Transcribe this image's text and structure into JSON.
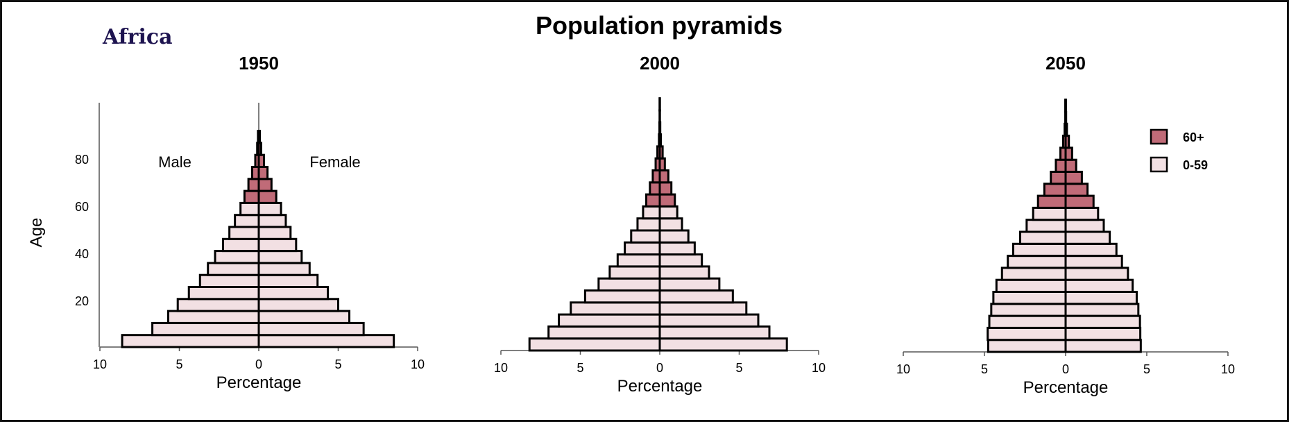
{
  "region_label": "Africa",
  "chart_data": {
    "type": "bar",
    "subtype": "population-pyramid",
    "title": "Population pyramids",
    "xlabel": "Percentage",
    "ylabel": "Age",
    "xlim": [
      -10,
      10
    ],
    "x_ticks": [
      "10",
      "5",
      "0",
      "5",
      "10"
    ],
    "y_ticks": [
      "20",
      "40",
      "60",
      "80"
    ],
    "side_labels": {
      "left": "Male",
      "right": "Female"
    },
    "age_groups": [
      "0-4",
      "5-9",
      "10-14",
      "15-19",
      "20-24",
      "25-29",
      "30-34",
      "35-39",
      "40-44",
      "45-49",
      "50-54",
      "55-59",
      "60-64",
      "65-69",
      "70-74",
      "75-79",
      "80-84",
      "85-89",
      "90-94",
      "95-99",
      "100+"
    ],
    "legend": {
      "position": "top-right",
      "entries": [
        {
          "label": "60+",
          "color": "#c06b78"
        },
        {
          "label": "0-59",
          "color": "#f2e0e3"
        }
      ]
    },
    "grid": false,
    "panels": [
      {
        "title": "1950",
        "male": [
          8.6,
          6.7,
          5.7,
          5.1,
          4.4,
          3.7,
          3.2,
          2.75,
          2.25,
          1.85,
          1.5,
          1.15,
          0.9,
          0.65,
          0.42,
          0.22,
          0.1,
          0.05,
          0,
          0,
          0
        ],
        "female": [
          8.5,
          6.6,
          5.7,
          5.0,
          4.35,
          3.7,
          3.2,
          2.7,
          2.35,
          2.0,
          1.7,
          1.4,
          1.1,
          0.8,
          0.55,
          0.33,
          0.15,
          0.07,
          0,
          0,
          0
        ]
      },
      {
        "title": "2000",
        "male": [
          8.2,
          7.0,
          6.35,
          5.6,
          4.7,
          3.85,
          3.15,
          2.65,
          2.2,
          1.8,
          1.4,
          1.05,
          0.85,
          0.62,
          0.44,
          0.26,
          0.15,
          0.05,
          0.02,
          0.01,
          0.01
        ],
        "female": [
          8.0,
          6.9,
          6.2,
          5.45,
          4.6,
          3.75,
          3.1,
          2.65,
          2.2,
          1.8,
          1.4,
          1.1,
          0.95,
          0.73,
          0.54,
          0.32,
          0.18,
          0.07,
          0.03,
          0.01,
          0.01
        ]
      },
      {
        "title": "2050",
        "male": [
          4.77,
          4.8,
          4.7,
          4.58,
          4.45,
          4.26,
          3.92,
          3.56,
          3.23,
          2.8,
          2.4,
          2.0,
          1.7,
          1.31,
          0.91,
          0.6,
          0.32,
          0.15,
          0.06,
          0.02,
          0.02
        ],
        "female": [
          4.63,
          4.6,
          4.58,
          4.48,
          4.38,
          4.13,
          3.84,
          3.47,
          3.13,
          2.72,
          2.35,
          2.0,
          1.72,
          1.35,
          1.0,
          0.65,
          0.4,
          0.2,
          0.08,
          0.03,
          0.02
        ]
      }
    ]
  }
}
